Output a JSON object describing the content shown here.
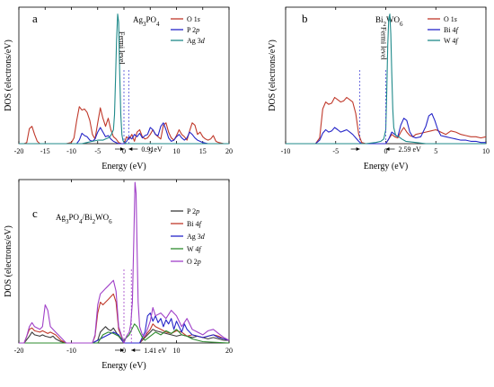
{
  "chart_data": [
    {
      "panel": "a",
      "type": "line",
      "title": "Ag3PO4",
      "xlabel": "Energy (eV)",
      "ylabel": "DOS (electrons/eV)",
      "xlim": [
        -20,
        20
      ],
      "xticks": [
        -20,
        -15,
        -10,
        -5,
        0,
        5,
        10,
        15,
        20
      ],
      "ylim": [
        0,
        1.2
      ],
      "legend_position": "top-right",
      "fermi_label": "Fermi level",
      "annotation": "0.91eV",
      "gap_lines": [
        0.0,
        0.91
      ],
      "series": [
        {
          "name": "O 1s",
          "color": "#c0392b",
          "x": [
            -20,
            -19,
            -18.5,
            -18,
            -17.5,
            -17,
            -16.5,
            -16,
            -15,
            -13,
            -12,
            -11,
            -10,
            -9.5,
            -9,
            -8.5,
            -8,
            -7.5,
            -7,
            -6.5,
            -6,
            -5.5,
            -5,
            -4.5,
            -4,
            -3.5,
            -3,
            -2.5,
            -2,
            -1.5,
            -1,
            -0.5,
            0,
            0.5,
            1,
            1.5,
            2,
            2.5,
            3,
            3.5,
            4,
            4.5,
            5,
            5.5,
            6,
            6.5,
            7,
            7.5,
            8,
            8.5,
            9,
            9.5,
            10,
            10.5,
            11,
            11.5,
            12,
            12.5,
            13,
            13.5,
            14,
            14.5,
            15,
            15.5,
            16,
            16.5,
            17,
            17.5,
            18,
            19,
            20
          ],
          "y": [
            0,
            0,
            0.01,
            0.13,
            0.15,
            0.08,
            0.02,
            0,
            0,
            0,
            0,
            0,
            0.01,
            0.05,
            0.2,
            0.32,
            0.29,
            0.3,
            0.27,
            0.2,
            0.08,
            0.04,
            0.18,
            0.31,
            0.22,
            0.15,
            0.22,
            0.12,
            0.06,
            0.04,
            0.01,
            0,
            0,
            0.06,
            0.04,
            0.08,
            0.02,
            0.1,
            0.12,
            0.06,
            0.04,
            0.05,
            0.08,
            0.12,
            0.08,
            0.06,
            0.04,
            0.16,
            0.18,
            0.1,
            0.05,
            0.03,
            0.07,
            0.12,
            0.08,
            0.06,
            0.03,
            0.11,
            0.18,
            0.16,
            0.08,
            0.1,
            0.06,
            0.04,
            0.03,
            0.04,
            0.07,
            0.02,
            0.01,
            0,
            0
          ]
        },
        {
          "name": "P 2p",
          "color": "#2525c8",
          "x": [
            -20,
            -10,
            -9,
            -8.5,
            -8,
            -7.5,
            -7,
            -6.5,
            -6,
            -5.5,
            -5,
            -4.5,
            -4,
            -3.5,
            -3,
            -2.5,
            -2,
            -1.5,
            -1,
            0,
            0.5,
            1,
            1.5,
            2,
            2.5,
            3,
            3.5,
            4,
            4.5,
            5,
            5.5,
            6,
            6.5,
            7,
            7.5,
            8,
            8.5,
            9,
            9.5,
            10,
            10.5,
            11,
            11.5,
            12,
            12.5,
            13,
            13.5,
            14,
            15,
            16,
            20
          ],
          "y": [
            0,
            0,
            0,
            0.03,
            0.09,
            0.07,
            0.06,
            0.03,
            0.02,
            0.04,
            0.1,
            0.14,
            0.1,
            0.06,
            0.07,
            0.04,
            0.02,
            0.01,
            0,
            0,
            0.02,
            0.06,
            0.04,
            0.08,
            0.06,
            0.09,
            0.05,
            0.07,
            0.08,
            0.14,
            0.12,
            0.08,
            0.07,
            0.15,
            0.18,
            0.12,
            0.05,
            0.02,
            0.03,
            0.06,
            0.08,
            0.05,
            0.03,
            0.05,
            0.1,
            0.08,
            0.05,
            0.03,
            0.01,
            0,
            0
          ]
        },
        {
          "name": "Ag 3d",
          "color": "#1f8a8a",
          "x": [
            -20,
            -8,
            -7,
            -6,
            -5,
            -4,
            -3.5,
            -3,
            -2.5,
            -2,
            -1.8,
            -1.6,
            -1.4,
            -1.2,
            -1.0,
            -0.8,
            -0.6,
            -0.4,
            -0.2,
            0,
            0.5,
            1,
            2,
            4,
            20
          ],
          "y": [
            0,
            0,
            0.01,
            0.02,
            0.03,
            0.03,
            0.04,
            0.05,
            0.07,
            0.12,
            0.25,
            0.55,
            0.9,
            1.12,
            1.05,
            0.6,
            0.25,
            0.08,
            0.03,
            0.01,
            0,
            0,
            0,
            0,
            0
          ]
        }
      ]
    },
    {
      "panel": "b",
      "type": "line",
      "title": "Bi2WO6",
      "xlabel": "Energy (eV)",
      "ylabel": "DOS (electrons/eV)",
      "xlim": [
        -10,
        10
      ],
      "xticks": [
        -10,
        -5,
        0,
        5,
        10
      ],
      "ylim": [
        0,
        1.2
      ],
      "legend_position": "top-right",
      "fermi_label": "Fermi level",
      "annotation": "2.59 eV",
      "gap_lines": [
        -2.59,
        0.0
      ],
      "series": [
        {
          "name": "O 1s",
          "color": "#c0392b",
          "x": [
            -10,
            -7.5,
            -7,
            -6.6,
            -6.3,
            -6.0,
            -5.7,
            -5.4,
            -5.1,
            -4.8,
            -4.5,
            -4.2,
            -3.9,
            -3.6,
            -3.3,
            -3.0,
            -2.7,
            -2.4,
            -2,
            0,
            0.3,
            0.6,
            0.9,
            1.2,
            1.5,
            1.8,
            2.1,
            2.4,
            2.7,
            3,
            3.5,
            4,
            4.5,
            5,
            5.5,
            6,
            6.5,
            7,
            7.5,
            8,
            8.5,
            9,
            9.5,
            10
          ],
          "y": [
            0,
            0,
            0,
            0.05,
            0.3,
            0.36,
            0.34,
            0.35,
            0.4,
            0.38,
            0.36,
            0.37,
            0.4,
            0.38,
            0.36,
            0.26,
            0.08,
            0.01,
            0,
            0,
            0.04,
            0.08,
            0.06,
            0.05,
            0.1,
            0.14,
            0.1,
            0.07,
            0.06,
            0.08,
            0.09,
            0.1,
            0.11,
            0.12,
            0.1,
            0.08,
            0.11,
            0.1,
            0.08,
            0.07,
            0.06,
            0.06,
            0.05,
            0.06
          ]
        },
        {
          "name": "Bi 4f",
          "color": "#2525c8",
          "x": [
            -10,
            -7.5,
            -7,
            -6.6,
            -6.3,
            -6.0,
            -5.7,
            -5.4,
            -5.1,
            -4.8,
            -4.5,
            -4.2,
            -3.9,
            -3.6,
            -3.3,
            -3.0,
            -2.7,
            -2.4,
            -2,
            0,
            0.3,
            0.6,
            0.9,
            1.2,
            1.5,
            1.8,
            2.1,
            2.4,
            2.7,
            3,
            3.5,
            4,
            4.3,
            4.6,
            4.9,
            5.2,
            5.5,
            6,
            6.5,
            7,
            7.5,
            8,
            8.5,
            9,
            9.5,
            10
          ],
          "y": [
            0,
            0,
            0,
            0.03,
            0.09,
            0.12,
            0.1,
            0.11,
            0.14,
            0.12,
            0.1,
            0.11,
            0.12,
            0.1,
            0.08,
            0.05,
            0.02,
            0,
            0,
            0,
            0.04,
            0.1,
            0.08,
            0.06,
            0.16,
            0.22,
            0.2,
            0.1,
            0.06,
            0.05,
            0.06,
            0.15,
            0.24,
            0.26,
            0.2,
            0.12,
            0.07,
            0.06,
            0.05,
            0.04,
            0.03,
            0.03,
            0.02,
            0.02,
            0.01,
            0.01
          ]
        },
        {
          "name": "W 4f",
          "color": "#1f8a8a",
          "x": [
            -10,
            -2,
            -1,
            -0.5,
            -0.2,
            0,
            0.1,
            0.2,
            0.3,
            0.4,
            0.5,
            0.6,
            0.7,
            0.8,
            1.0,
            1.3,
            1.6,
            2,
            3,
            4,
            10
          ],
          "y": [
            0,
            0,
            0.01,
            0.02,
            0.04,
            0.12,
            0.45,
            0.85,
            1.08,
            1.12,
            0.95,
            0.6,
            0.3,
            0.14,
            0.07,
            0.06,
            0.04,
            0.02,
            0.01,
            0,
            0
          ]
        }
      ]
    },
    {
      "panel": "c",
      "type": "line",
      "title": "Ag3PO4/Bi2WO6",
      "xlabel": "Energy (eV)",
      "ylabel": "DOS (electrons/eV)",
      "xlim": [
        -20,
        20
      ],
      "xticks": [
        -20,
        -10,
        0,
        10,
        20
      ],
      "ylim": [
        0,
        1.2
      ],
      "legend_position": "top-right",
      "annotation": "1.41 eV",
      "gap_lines": [
        0.0,
        1.41
      ],
      "series": [
        {
          "name": "P 2p",
          "color": "#3a3a3a",
          "x": [
            -20,
            -19,
            -18,
            -17.5,
            -17,
            -16,
            -15.5,
            -15,
            -14,
            -13.5,
            -13,
            -12,
            -11,
            -6,
            -5,
            -4.5,
            -4,
            -3.5,
            -3,
            -2.5,
            -2,
            -1.5,
            -1,
            0,
            1,
            3,
            4,
            5,
            5.5,
            6,
            7,
            8,
            9,
            10,
            11,
            12,
            13,
            14,
            15,
            16,
            17,
            18,
            19,
            20
          ],
          "y": [
            0,
            0,
            0.05,
            0.08,
            0.06,
            0.05,
            0.06,
            0.05,
            0.04,
            0.05,
            0.03,
            0.01,
            0,
            0,
            0.02,
            0.08,
            0.1,
            0.12,
            0.1,
            0.09,
            0.11,
            0.08,
            0.05,
            0,
            0,
            0,
            0.04,
            0.08,
            0.1,
            0.09,
            0.08,
            0.07,
            0.06,
            0.05,
            0.06,
            0.05,
            0.04,
            0.05,
            0.04,
            0.03,
            0.04,
            0.03,
            0.02,
            0.02
          ]
        },
        {
          "name": "Bi 4f",
          "color": "#c0392b",
          "x": [
            -20,
            -19,
            -18.5,
            -18,
            -17.5,
            -17,
            -16,
            -15.5,
            -15,
            -14.5,
            -14,
            -13,
            -12.5,
            -12,
            -11,
            -6,
            -5.5,
            -5,
            -4.5,
            -4,
            -3.5,
            -3,
            -2.5,
            -2,
            -1.5,
            -1,
            0,
            1,
            3,
            4,
            5,
            5.5,
            6,
            7,
            8,
            9,
            10,
            11,
            12,
            13,
            14,
            15,
            16,
            17,
            18,
            19,
            20
          ],
          "y": [
            0,
            0,
            0.05,
            0.1,
            0.11,
            0.09,
            0.08,
            0.09,
            0.08,
            0.07,
            0.08,
            0.06,
            0.04,
            0.02,
            0,
            0,
            0.05,
            0.22,
            0.3,
            0.28,
            0.3,
            0.32,
            0.34,
            0.36,
            0.3,
            0.1,
            0,
            0,
            0,
            0.05,
            0.1,
            0.14,
            0.12,
            0.1,
            0.08,
            0.07,
            0.09,
            0.08,
            0.05,
            0.06,
            0.05,
            0.04,
            0.05,
            0.06,
            0.05,
            0.03,
            0.02
          ]
        },
        {
          "name": "Ag 3d",
          "color": "#2525c8",
          "x": [
            -20,
            -7,
            -6,
            -5,
            -4,
            -3,
            -2,
            -1,
            0,
            1,
            3,
            4,
            4.5,
            5,
            5.5,
            6,
            6.5,
            7,
            7.5,
            8,
            8.5,
            9,
            9.5,
            10,
            10.5,
            11,
            11.5,
            12,
            13,
            14,
            15,
            16,
            17,
            18,
            19,
            20
          ],
          "y": [
            0,
            0,
            0,
            0.02,
            0.04,
            0.06,
            0.08,
            0.06,
            0,
            0,
            0,
            0.08,
            0.2,
            0.22,
            0.16,
            0.2,
            0.15,
            0.18,
            0.12,
            0.17,
            0.14,
            0.18,
            0.1,
            0.16,
            0.12,
            0.08,
            0.14,
            0.1,
            0.06,
            0.05,
            0.04,
            0.05,
            0.06,
            0.04,
            0.03,
            0.02
          ]
        },
        {
          "name": "W 4f",
          "color": "#2e8b2e",
          "x": [
            -20,
            -6,
            -5,
            -4.5,
            -4,
            -3,
            -2,
            -1,
            0,
            0.5,
            1,
            1.5,
            2,
            2.5,
            3,
            3.5,
            4,
            5,
            6,
            7,
            8,
            9,
            10,
            11,
            12,
            13,
            14,
            15,
            20
          ],
          "y": [
            0,
            0,
            0,
            0.03,
            0.06,
            0.08,
            0.07,
            0.05,
            0.02,
            0.04,
            0.06,
            0.1,
            0.14,
            0.12,
            0.08,
            0.04,
            0.02,
            0.05,
            0.08,
            0.06,
            0.09,
            0.07,
            0.1,
            0.06,
            0.05,
            0.03,
            0.02,
            0.01,
            0
          ]
        },
        {
          "name": "O 2p",
          "color": "#a040c8",
          "x": [
            -20,
            -19,
            -18.5,
            -18,
            -17.5,
            -17,
            -16,
            -15.5,
            -15,
            -14.5,
            -14,
            -13,
            -12.5,
            -12,
            -11,
            -6,
            -5.5,
            -5,
            -4.5,
            -4,
            -3.5,
            -3,
            -2.5,
            -2,
            -1.5,
            -1,
            0,
            0.5,
            1,
            1.3,
            1.6,
            1.9,
            2.1,
            2.3,
            2.5,
            2.7,
            3.0,
            3.5,
            4,
            5,
            5.5,
            6,
            7,
            8,
            9,
            10,
            11,
            12,
            13,
            14,
            15,
            16,
            17,
            18,
            19,
            20
          ],
          "y": [
            0,
            0,
            0.05,
            0.12,
            0.15,
            0.12,
            0.1,
            0.12,
            0.28,
            0.24,
            0.12,
            0.08,
            0.06,
            0.04,
            0,
            0,
            0.06,
            0.28,
            0.36,
            0.38,
            0.4,
            0.42,
            0.44,
            0.46,
            0.38,
            0.12,
            0,
            0.05,
            0.08,
            0.14,
            0.3,
            0.8,
            1.18,
            1.1,
            0.7,
            0.3,
            0.12,
            0.06,
            0.05,
            0.16,
            0.26,
            0.2,
            0.22,
            0.18,
            0.24,
            0.2,
            0.12,
            0.18,
            0.1,
            0.08,
            0.06,
            0.09,
            0.1,
            0.07,
            0.04,
            0.02
          ]
        }
      ]
    }
  ]
}
